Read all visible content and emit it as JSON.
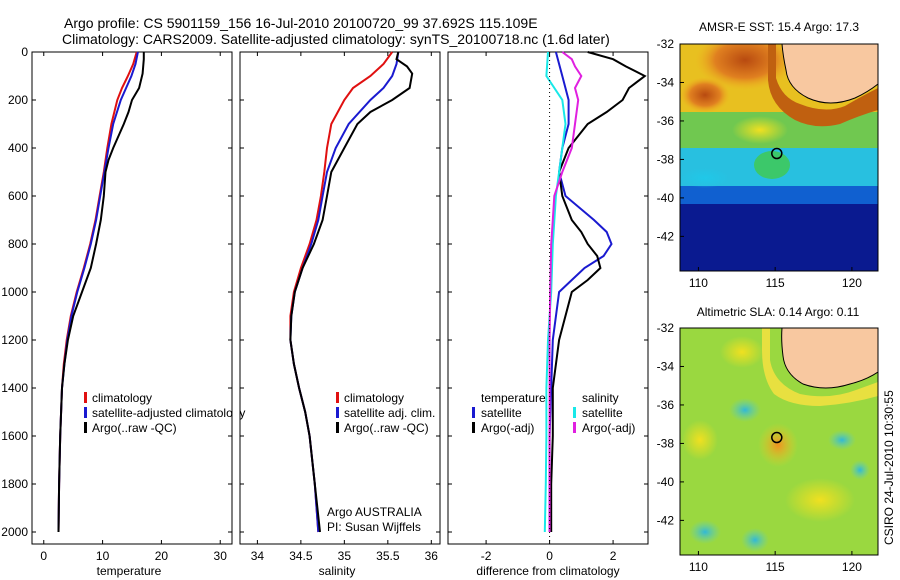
{
  "header": {
    "line1": "Argo profile: CS 5901159_156 16-Jul-2010 20100720_99 37.692S 115.109E",
    "line2": "Climatology: CARS2009. Satellite-adjusted climatology: synTS_20100718.nc (1.6d later)"
  },
  "side_stamp": "CSIRO 24-Jul-2010 10:30:55",
  "colors": {
    "climatology": "#e01010",
    "satellite": "#1a1ad0",
    "argo": "#000000",
    "cyan": "#18e8e8",
    "magenta": "#e020e0",
    "land": "#f8c8a0"
  },
  "chart_data": [
    {
      "type": "line",
      "xlabel": "temperature",
      "ylim": [
        2050,
        0
      ],
      "xlim": [
        -2,
        32
      ],
      "xticks": [
        0,
        10,
        20,
        30
      ],
      "yticks": [
        0,
        200,
        400,
        600,
        800,
        1000,
        1200,
        1400,
        1600,
        1800,
        2000
      ],
      "legend": [
        "climatology",
        "satellite-adjusted climatology",
        "Argo(..raw -QC)"
      ],
      "series": [
        {
          "name": "climatology",
          "depth": [
            0,
            50,
            100,
            150,
            200,
            300,
            400,
            500,
            600,
            700,
            800,
            900,
            1000,
            1100,
            1200,
            1300,
            1400,
            1600,
            1800,
            2000
          ],
          "values": [
            15.8,
            15.2,
            14.3,
            13.3,
            12.5,
            11.5,
            10.8,
            10.2,
            9.5,
            8.8,
            7.9,
            6.8,
            5.6,
            4.6,
            3.9,
            3.4,
            3.1,
            2.8,
            2.6,
            2.5
          ]
        },
        {
          "name": "satellite-adjusted climatology",
          "depth": [
            0,
            50,
            100,
            150,
            200,
            300,
            400,
            500,
            600,
            700,
            800,
            900,
            1000,
            1100,
            1200,
            1300,
            1400,
            1600,
            1800,
            2000
          ],
          "values": [
            16.0,
            15.6,
            14.9,
            14.0,
            13.1,
            11.8,
            11.0,
            10.3,
            9.6,
            8.9,
            8.0,
            6.9,
            5.7,
            4.7,
            4.0,
            3.5,
            3.1,
            2.8,
            2.6,
            2.5
          ]
        },
        {
          "name": "Argo(..raw -QC)",
          "depth": [
            0,
            30,
            60,
            90,
            150,
            200,
            250,
            300,
            350,
            400,
            450,
            500,
            600,
            700,
            800,
            900,
            1000,
            1100,
            1200,
            1300,
            1400,
            1600,
            1800,
            2000
          ],
          "values": [
            17.0,
            17.0,
            16.9,
            16.8,
            16.2,
            15.0,
            14.4,
            13.6,
            12.7,
            11.8,
            11.0,
            10.5,
            10.2,
            9.7,
            8.9,
            8.0,
            6.5,
            5.0,
            4.1,
            3.5,
            3.1,
            2.8,
            2.6,
            2.5
          ]
        }
      ]
    },
    {
      "type": "line",
      "xlabel": "salinity",
      "ylim": [
        2050,
        0
      ],
      "xlim": [
        33.8,
        36.1
      ],
      "xticks": [
        34,
        34.5,
        35,
        35.5,
        36
      ],
      "legend": [
        "climatology",
        "satellite adj. clim.",
        "Argo(..raw -QC)"
      ],
      "annotation": [
        "Argo AUSTRALIA",
        "PI: Susan Wijffels"
      ],
      "series": [
        {
          "name": "climatology",
          "depth": [
            0,
            50,
            100,
            150,
            200,
            300,
            400,
            500,
            600,
            700,
            800,
            900,
            1000,
            1100,
            1200,
            1300,
            1400,
            1500,
            1600,
            1800,
            2000
          ],
          "values": [
            35.55,
            35.45,
            35.3,
            35.1,
            35.0,
            34.85,
            34.8,
            34.77,
            34.73,
            34.68,
            34.6,
            34.5,
            34.42,
            34.38,
            34.38,
            34.42,
            34.48,
            34.55,
            34.6,
            34.66,
            34.7
          ]
        },
        {
          "name": "satellite adj. clim.",
          "depth": [
            0,
            50,
            100,
            150,
            200,
            300,
            400,
            500,
            600,
            700,
            800,
            900,
            1000,
            1100,
            1200,
            1300,
            1400,
            1500,
            1600,
            1800,
            2000
          ],
          "values": [
            35.62,
            35.6,
            35.55,
            35.45,
            35.3,
            35.05,
            34.9,
            34.8,
            34.75,
            34.7,
            34.62,
            34.52,
            34.43,
            34.39,
            34.38,
            34.42,
            34.48,
            34.55,
            34.6,
            34.66,
            34.7
          ]
        },
        {
          "name": "Argo(..raw -QC)",
          "depth": [
            0,
            30,
            60,
            90,
            150,
            200,
            250,
            300,
            400,
            500,
            600,
            700,
            800,
            900,
            1000,
            1100,
            1200,
            1300,
            1400,
            1500,
            1600,
            1800,
            2000
          ],
          "values": [
            35.62,
            35.6,
            35.72,
            35.78,
            35.75,
            35.55,
            35.3,
            35.15,
            35.0,
            34.85,
            34.8,
            34.75,
            34.65,
            34.52,
            34.43,
            34.39,
            34.38,
            34.42,
            34.48,
            34.55,
            34.6,
            34.66,
            34.72
          ]
        }
      ]
    },
    {
      "type": "line",
      "xlabel": "difference from climatology",
      "ylim": [
        2050,
        0
      ],
      "xlim": [
        -3.2,
        3.1
      ],
      "xticks": [
        -2,
        0,
        2
      ],
      "legend": {
        "temperature_header": "temperature",
        "salinity_header": "salinity",
        "temperature": [
          "satellite",
          "Argo(-adj)"
        ],
        "salinity": [
          "satellite",
          "Argo(-adj)"
        ]
      },
      "series": [
        {
          "name": "satellite",
          "depth": [
            0,
            100,
            200,
            300,
            400,
            500,
            600,
            700,
            750,
            800,
            850,
            900,
            950,
            1000,
            1200,
            1400,
            1600,
            1800,
            2000
          ],
          "values": [
            0.2,
            0.4,
            0.6,
            0.6,
            0.4,
            0.3,
            0.5,
            1.4,
            1.8,
            1.95,
            1.7,
            1.1,
            0.7,
            0.3,
            0.1,
            0.05,
            0.0,
            0.0,
            0.0
          ]
        },
        {
          "name": "Argo(-adj)",
          "depth": [
            0,
            30,
            60,
            100,
            150,
            200,
            250,
            300,
            400,
            500,
            600,
            700,
            750,
            800,
            850,
            900,
            950,
            1000,
            1200,
            1400,
            1600,
            1800,
            2000
          ],
          "values": [
            1.2,
            2.0,
            2.4,
            3.0,
            2.5,
            2.3,
            1.8,
            1.2,
            0.6,
            0.3,
            0.4,
            0.7,
            1.0,
            1.2,
            1.5,
            1.6,
            1.2,
            0.7,
            0.3,
            0.1,
            0.1,
            0.05,
            0.05
          ]
        },
        {
          "name": "satellite",
          "depth": [
            0,
            100,
            200,
            300,
            400,
            500,
            600,
            800,
            1000,
            1200,
            1400,
            1600,
            1800,
            2000
          ],
          "values": [
            -0.05,
            -0.1,
            0.4,
            0.5,
            0.4,
            0.3,
            0.2,
            0.1,
            0.05,
            -0.05,
            -0.1,
            -0.1,
            -0.12,
            -0.15
          ]
        },
        {
          "name": "Argo(-adj)",
          "depth": [
            0,
            30,
            60,
            100,
            150,
            200,
            300,
            400,
            500,
            600,
            700,
            800,
            1000,
            1200,
            1400,
            1600,
            1800,
            2000
          ],
          "values": [
            0.4,
            0.7,
            0.8,
            1.0,
            0.8,
            0.9,
            0.8,
            0.7,
            0.4,
            0.15,
            0.1,
            0.05,
            0.02,
            0.0,
            0.0,
            0.0,
            0.0,
            0.0
          ]
        }
      ]
    },
    {
      "type": "heatmap",
      "title": "AMSR-E SST: 15.4 Argo: 17.3",
      "xticks": [
        110,
        115,
        120
      ],
      "yticks": [
        -32,
        -34,
        -36,
        -38,
        -40,
        -42
      ],
      "xlim": [
        108.8,
        121.7
      ],
      "ylim": [
        -32,
        -43.8
      ],
      "marker": {
        "lon": 115.109,
        "lat": -37.692
      }
    },
    {
      "type": "heatmap",
      "title": "Altimetric SLA: 0.14 Argo: 0.11",
      "xticks": [
        110,
        115,
        120
      ],
      "yticks": [
        -32,
        -34,
        -36,
        -38,
        -40,
        -42
      ],
      "xlim": [
        108.8,
        121.7
      ],
      "ylim": [
        -32,
        -43.8
      ],
      "marker": {
        "lon": 115.109,
        "lat": -37.692
      }
    }
  ]
}
